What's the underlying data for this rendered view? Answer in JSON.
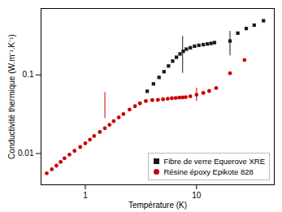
{
  "chart_data": {
    "type": "scatter",
    "xlabel": "Température (K)",
    "ylabel": "Conductivité thermique (W.m⁻¹.K⁻¹)",
    "xlim": [
      0.4,
      50
    ],
    "ylim": [
      0.004,
      0.7
    ],
    "xticks": [
      1,
      10
    ],
    "yticks": [
      0.01,
      0.1
    ],
    "log": true,
    "grid": false,
    "legend": "lower right",
    "series": [
      {
        "name": "Fibre de verre Equerove XRE",
        "color": "#1a1a1a",
        "marker": "square",
        "x": [
          3.6,
          4.1,
          4.6,
          5.1,
          5.6,
          6.1,
          6.6,
          7.1,
          7.6,
          8.1,
          8.8,
          9.6,
          10.5,
          11.5,
          12.5,
          13.5,
          14.5,
          20.0,
          23.5,
          28.0,
          33.0,
          40.0
        ],
        "values": [
          0.062,
          0.077,
          0.093,
          0.11,
          0.13,
          0.15,
          0.168,
          0.185,
          0.2,
          0.213,
          0.222,
          0.232,
          0.238,
          0.243,
          0.248,
          0.252,
          0.258,
          0.27,
          0.34,
          0.39,
          0.43,
          0.49
        ],
        "error_bars": {
          "x": [
            7.5,
            20.0
          ],
          "low": [
            0.105,
            0.175
          ],
          "high": [
            0.31,
            0.36
          ]
        }
      },
      {
        "name": "Résine époxy Epikote 828",
        "color": "#cc0000",
        "marker": "circle",
        "x": [
          0.45,
          0.5,
          0.55,
          0.6,
          0.65,
          0.72,
          0.8,
          0.9,
          1.0,
          1.1,
          1.2,
          1.35,
          1.5,
          1.65,
          1.8,
          2.0,
          2.2,
          2.5,
          2.8,
          3.1,
          3.5,
          4.0,
          4.5,
          5.0,
          5.5,
          6.0,
          6.5,
          7.0,
          7.5,
          8.0,
          8.8,
          10.0,
          11.5,
          13.0,
          15.0,
          20.0,
          27.0
        ],
        "values": [
          0.0056,
          0.0063,
          0.007,
          0.0078,
          0.0087,
          0.0097,
          0.0108,
          0.0121,
          0.0135,
          0.015,
          0.0167,
          0.0188,
          0.021,
          0.0232,
          0.0258,
          0.0288,
          0.0318,
          0.0362,
          0.04,
          0.0435,
          0.0465,
          0.0478,
          0.0482,
          0.049,
          0.0498,
          0.0505,
          0.051,
          0.0515,
          0.0518,
          0.0522,
          0.0535,
          0.056,
          0.059,
          0.0625,
          0.068,
          0.105,
          0.155
        ],
        "error_bars": {
          "x": [
            1.5,
            10.0
          ],
          "low": [
            0.028,
            0.046
          ],
          "high": [
            0.06,
            0.068
          ]
        }
      }
    ]
  }
}
